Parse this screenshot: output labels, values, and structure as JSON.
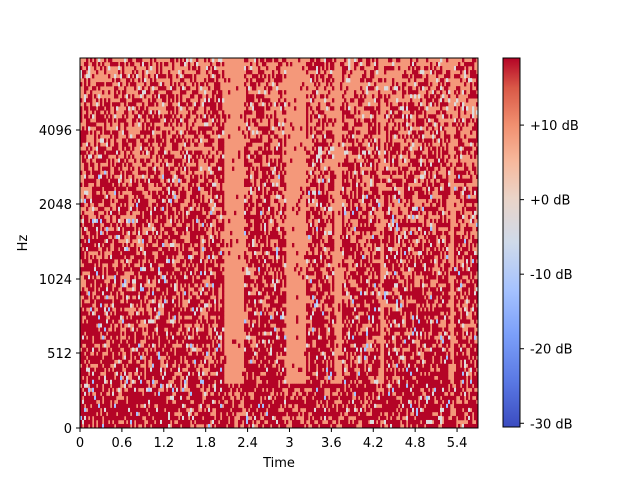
{
  "chart_data": {
    "type": "heatmap",
    "title": "",
    "xlabel": "Time",
    "ylabel": "Hz",
    "x_ticks": [
      "0",
      "0.6",
      "1.2",
      "1.8",
      "2.4",
      "3",
      "3.6",
      "4.2",
      "4.8",
      "5.4"
    ],
    "x_tick_values": [
      0,
      0.6,
      1.2,
      1.8,
      2.4,
      3.0,
      3.6,
      4.2,
      4.8,
      5.4
    ],
    "xlim": [
      0,
      5.7
    ],
    "y_scale": "log-like (mel)",
    "y_ticks": [
      "0",
      "512",
      "1024",
      "2048",
      "4096"
    ],
    "colorbar": {
      "colormap": "coolwarm",
      "ticks": [
        "+10 dB",
        "+0 dB",
        "-10 dB",
        "-20 dB",
        "-30 dB"
      ],
      "tick_values": [
        10,
        0,
        -10,
        -20,
        -30
      ],
      "range": [
        -30.5,
        19
      ]
    },
    "quiet_regions_time": [
      [
        2.05,
        2.35
      ],
      [
        2.95,
        3.25
      ],
      [
        3.65,
        3.75
      ],
      [
        4.3,
        4.35
      ],
      [
        5.3,
        5.35
      ]
    ],
    "colors": {
      "high": "#b40426",
      "mid_high": "#f4987a",
      "mid": "#dddcdc",
      "low": "#3b4cc0"
    }
  }
}
